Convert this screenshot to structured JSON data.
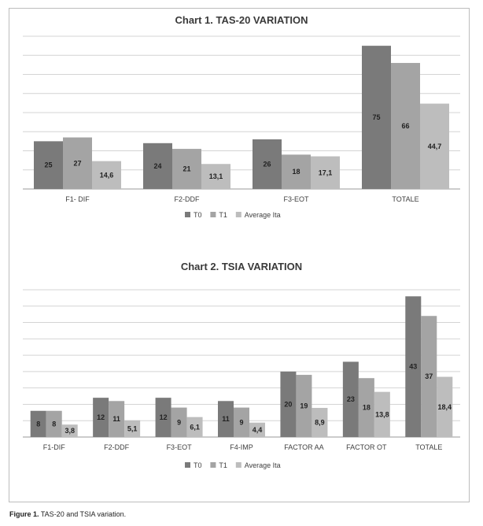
{
  "colors": {
    "T0": "#7a7a7a",
    "T1": "#a4a4a4",
    "Average Ita": "#bdbdbd",
    "grid": "#d4d4d4"
  },
  "caption": {
    "label": "Figure 1.",
    "text": " TAS-20 and TSIA variation."
  },
  "chart_data": [
    {
      "type": "bar",
      "title": "Chart 1. TAS-20 VARIATION",
      "categories": [
        "F1- DIF",
        "F2-DDF",
        "F3-EOT",
        "TOTALE"
      ],
      "series": [
        {
          "name": "T0",
          "values": [
            25,
            24,
            26,
            75
          ],
          "labels": [
            "25",
            "24",
            "26",
            "75"
          ]
        },
        {
          "name": "T1",
          "values": [
            27,
            21,
            18,
            66
          ],
          "labels": [
            "27",
            "21",
            "18",
            "66"
          ]
        },
        {
          "name": "Average Ita",
          "values": [
            14.6,
            13.1,
            17.1,
            44.7
          ],
          "labels": [
            "14,6",
            "13,1",
            "17,1",
            "44,7"
          ]
        }
      ],
      "ylim": [
        0,
        80
      ],
      "grid": true,
      "legend": "bottom-center"
    },
    {
      "type": "bar",
      "title": "Chart 2. TSIA VARIATION",
      "categories": [
        "F1-DIF",
        "F2-DDF",
        "F3-EOT",
        "F4-IMP",
        "FACTOR AA",
        "FACTOR OT",
        "TOTALE"
      ],
      "series": [
        {
          "name": "T0",
          "values": [
            8,
            12,
            12,
            11,
            20,
            23,
            43
          ],
          "labels": [
            "8",
            "12",
            "12",
            "11",
            "20",
            "23",
            "43"
          ]
        },
        {
          "name": "T1",
          "values": [
            8,
            11,
            9,
            9,
            19,
            18,
            37
          ],
          "labels": [
            "8",
            "11",
            "9",
            "9",
            "19",
            "18",
            "37"
          ]
        },
        {
          "name": "Average Ita",
          "values": [
            3.8,
            5.1,
            6.1,
            4.4,
            8.9,
            13.8,
            18.4
          ],
          "labels": [
            "3,8",
            "5,1",
            "6,1",
            "4,4",
            "8,9",
            "13,8",
            "18,4"
          ]
        }
      ],
      "ylim": [
        0,
        45
      ],
      "grid": true,
      "legend": "bottom-center"
    }
  ]
}
